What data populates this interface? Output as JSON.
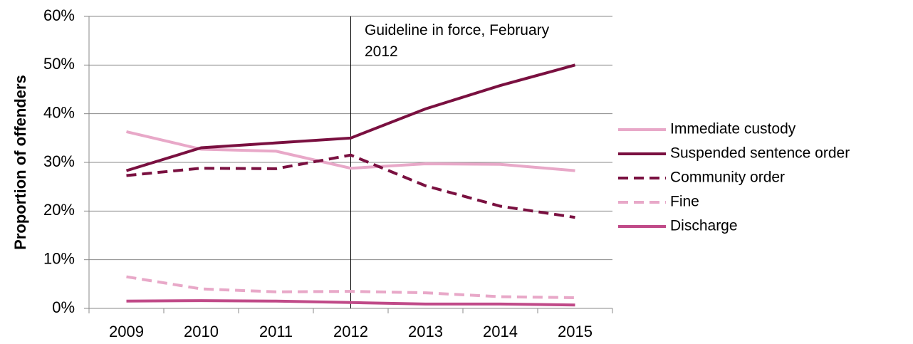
{
  "chart_data": {
    "type": "line",
    "y_label": "Proportion of offenders",
    "categories": [
      "2009",
      "2010",
      "2011",
      "2012",
      "2013",
      "2014",
      "2015"
    ],
    "series": [
      {
        "name": "Immediate custody",
        "color": "#e8a8c8",
        "dash": false,
        "values": [
          36.3,
          32.7,
          32.3,
          28.8,
          29.7,
          29.6,
          28.3
        ]
      },
      {
        "name": "Suspended sentence order",
        "color": "#7a1040",
        "dash": false,
        "values": [
          28.3,
          33,
          34,
          35,
          41,
          45.8,
          50
        ]
      },
      {
        "name": "Community order",
        "color": "#7a1040",
        "dash": true,
        "values": [
          27.3,
          28.8,
          28.7,
          31.5,
          25.2,
          21,
          18.7
        ]
      },
      {
        "name": "Fine",
        "color": "#e8a8c8",
        "dash": true,
        "values": [
          6.5,
          4,
          3.4,
          3.5,
          3.2,
          2.4,
          2.2
        ]
      },
      {
        "name": "Discharge",
        "color": "#c04a88",
        "dash": false,
        "values": [
          1.5,
          1.6,
          1.5,
          1.2,
          0.9,
          0.9,
          0.7
        ]
      }
    ],
    "ylim": [
      0,
      60
    ],
    "yticks": [
      {
        "value": 0,
        "label": "0%"
      },
      {
        "value": 10,
        "label": "10%"
      },
      {
        "value": 20,
        "label": "20%"
      },
      {
        "value": 30,
        "label": "30%"
      },
      {
        "value": 40,
        "label": "40%"
      },
      {
        "value": 50,
        "label": "50%"
      },
      {
        "value": 60,
        "label": "60%"
      }
    ],
    "grid": true,
    "legend": "right",
    "annotation": {
      "text": "Guideline in force, February 2012",
      "category": "2012"
    }
  }
}
